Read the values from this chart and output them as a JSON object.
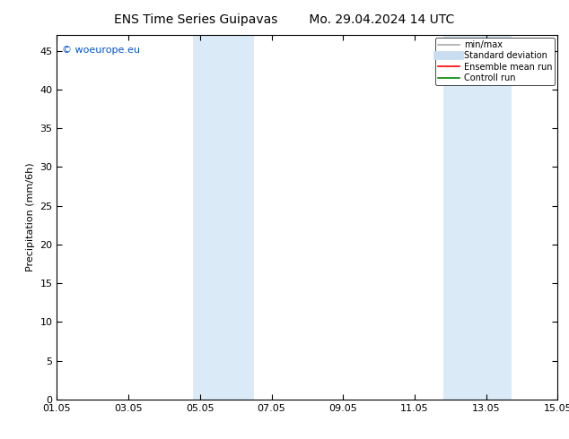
{
  "title_left": "ENS Time Series Guipavas",
  "title_right": "Mo. 29.04.2024 14 UTC",
  "ylabel": "Precipitation (mm/6h)",
  "xlim": [
    0,
    14
  ],
  "ylim": [
    0,
    47
  ],
  "yticks": [
    0,
    5,
    10,
    15,
    20,
    25,
    30,
    35,
    40,
    45
  ],
  "xtick_labels": [
    "01.05",
    "03.05",
    "05.05",
    "07.05",
    "09.05",
    "11.05",
    "13.05",
    "15.05"
  ],
  "xtick_positions": [
    0,
    2,
    4,
    6,
    8,
    10,
    12,
    14
  ],
  "shaded_bands": [
    {
      "x_start": 3.8,
      "x_end": 5.5,
      "color": "#daeaf7"
    },
    {
      "x_start": 10.8,
      "x_end": 12.7,
      "color": "#daeaf7"
    }
  ],
  "background_color": "#ffffff",
  "watermark_text": "© woeurope.eu",
  "watermark_color": "#0055cc",
  "legend_entries": [
    {
      "label": "min/max",
      "color": "#aaaaaa",
      "lw": 1.2
    },
    {
      "label": "Standard deviation",
      "color": "#c8ddef",
      "lw": 7
    },
    {
      "label": "Ensemble mean run",
      "color": "#ff0000",
      "lw": 1.2
    },
    {
      "label": "Controll run",
      "color": "#008800",
      "lw": 1.2
    }
  ],
  "title_fontsize": 10,
  "axis_fontsize": 8,
  "tick_fontsize": 8,
  "legend_fontsize": 7,
  "watermark_fontsize": 8
}
